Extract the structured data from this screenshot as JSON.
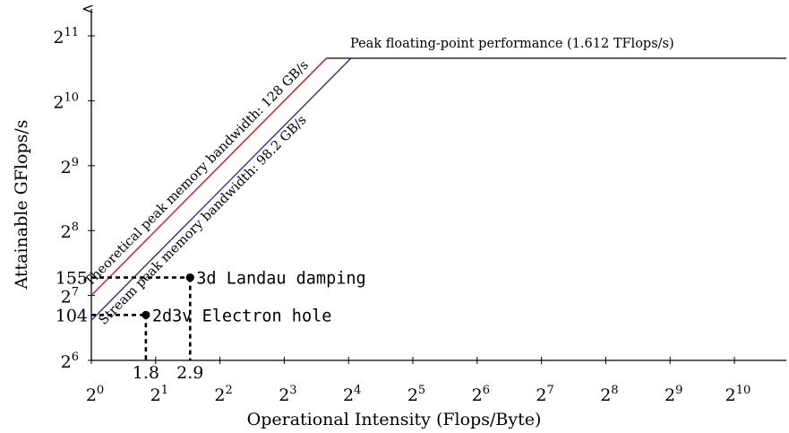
{
  "chart_data": {
    "type": "line",
    "title": "",
    "xlabel": "Operational Intensity (Flops/Byte)",
    "ylabel": "Attainable GFlops/s",
    "x_scale": "log2",
    "y_scale": "log2",
    "xlim": [
      1,
      2200
    ],
    "ylim": [
      64,
      3000
    ],
    "grid": false,
    "x_ticks": [
      {
        "value": 1,
        "base": "2",
        "exp": "0"
      },
      {
        "value": 2,
        "base": "2",
        "exp": "1"
      },
      {
        "value": 4,
        "base": "2",
        "exp": "2"
      },
      {
        "value": 8,
        "base": "2",
        "exp": "3"
      },
      {
        "value": 16,
        "base": "2",
        "exp": "4"
      },
      {
        "value": 32,
        "base": "2",
        "exp": "5"
      },
      {
        "value": 64,
        "base": "2",
        "exp": "6"
      },
      {
        "value": 128,
        "base": "2",
        "exp": "7"
      },
      {
        "value": 256,
        "base": "2",
        "exp": "8"
      },
      {
        "value": 512,
        "base": "2",
        "exp": "9"
      },
      {
        "value": 1024,
        "base": "2",
        "exp": "10"
      }
    ],
    "y_ticks": [
      {
        "value": 64,
        "base": "2",
        "exp": "6"
      },
      {
        "value": 128,
        "base": "2",
        "exp": "7"
      },
      {
        "value": 256,
        "base": "2",
        "exp": "8"
      },
      {
        "value": 512,
        "base": "2",
        "exp": "9"
      },
      {
        "value": 1024,
        "base": "2",
        "exp": "10"
      },
      {
        "value": 2048,
        "base": "2",
        "exp": "11"
      }
    ],
    "series": [
      {
        "name": "Peak floating-point performance (1.612 TFlops/s)",
        "kind": "horizontal",
        "peak": 1612,
        "color": "#000000"
      },
      {
        "name": "Theoretical peak memory bandwidth: 128 GB/s",
        "kind": "bandwidth",
        "bandwidth": 128,
        "color": "#e8000b"
      },
      {
        "name": "Stream peak memory bandwidth: 98.2 GB/s",
        "kind": "bandwidth",
        "bandwidth": 98.2,
        "color": "#1f1fa8"
      }
    ],
    "points": [
      {
        "label": "3d Landau damping",
        "x": 2.9,
        "y": 155,
        "x_label": "2.9",
        "y_label": "155"
      },
      {
        "label": "2d3v Electron hole",
        "x": 1.8,
        "y": 104,
        "x_label": "1.8",
        "y_label": "104"
      }
    ]
  }
}
